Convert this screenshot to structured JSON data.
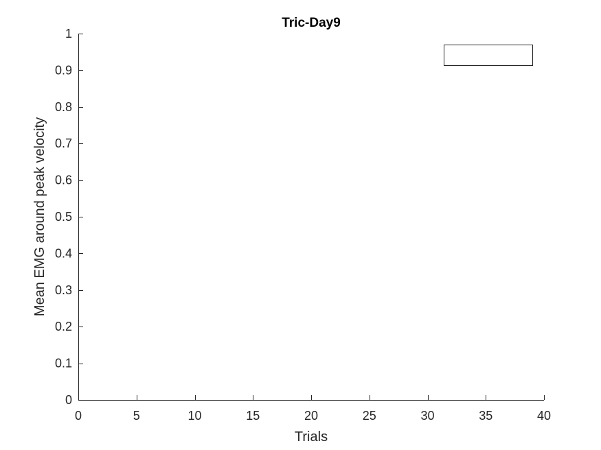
{
  "chart_data": {
    "type": "line",
    "title": "Tric-Day9",
    "xlabel": "Trials",
    "ylabel": "Mean EMG around peak velocity",
    "xlim": [
      0,
      40
    ],
    "ylim": [
      0,
      1
    ],
    "xticks": [
      0,
      5,
      10,
      15,
      20,
      25,
      30,
      35,
      40
    ],
    "yticks": [
      0,
      0.1,
      0.2,
      0.3,
      0.4,
      0.5,
      0.6,
      0.7,
      0.8,
      0.9,
      1
    ],
    "xtick_labels": [
      "0",
      "5",
      "10",
      "15",
      "20",
      "25",
      "30",
      "35",
      "40"
    ],
    "ytick_labels": [
      "0",
      "0.1",
      "0.2",
      "0.3",
      "0.4",
      "0.5",
      "0.6",
      "0.7",
      "0.8",
      "0.9",
      "1"
    ],
    "series": [],
    "legend": {
      "location": "top-right",
      "entries": []
    },
    "grid": false,
    "colors": {
      "axis": "#262626",
      "title": "#000000",
      "background": "#ffffff"
    }
  }
}
